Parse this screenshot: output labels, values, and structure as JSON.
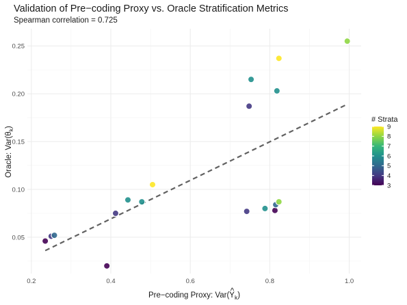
{
  "chart_data": {
    "type": "scatter",
    "title": "Validation of Pre−coding Proxy vs. Oracle Stratification Metrics",
    "subtitle": "Spearman correlation = 0.725",
    "xlabel": {
      "prefix": "Pre−coding Proxy: Var(",
      "main": "Y",
      "accent": "^",
      "subscript": "k",
      "suffix": ")"
    },
    "ylabel": {
      "prefix": "Oracle: Var(",
      "main": "θ",
      "accent": "^",
      "subscript": "k",
      "suffix": ")"
    },
    "xlim": [
      0.19,
      1.03
    ],
    "ylim": [
      0.012,
      0.268
    ],
    "x_ticks": [
      0.2,
      0.4,
      0.6,
      0.8,
      1.0
    ],
    "x_tick_labels": [
      "0.2",
      "0.4",
      "0.6",
      "0.8",
      "1.0"
    ],
    "y_ticks": [
      0.05,
      0.1,
      0.15,
      0.2,
      0.25
    ],
    "y_tick_labels": [
      "0.05",
      "0.10",
      "0.15",
      "0.20",
      "0.25"
    ],
    "grid": true,
    "legend": {
      "title": "# Strata",
      "position": "right",
      "range": [
        3,
        9
      ],
      "ticks": [
        3,
        4,
        5,
        6,
        7,
        8,
        9
      ],
      "tick_labels": [
        "3",
        "4",
        "5",
        "6",
        "7",
        "8",
        "9"
      ]
    },
    "trend_line": {
      "style": "dashed",
      "color": "#616161",
      "x": [
        0.235,
        0.995
      ],
      "y": [
        0.036,
        0.189
      ]
    },
    "points": [
      {
        "x": 0.235,
        "y": 0.046,
        "strata": 3
      },
      {
        "x": 0.25,
        "y": 0.051,
        "strata": 4
      },
      {
        "x": 0.258,
        "y": 0.052,
        "strata": 5
      },
      {
        "x": 0.39,
        "y": 0.02,
        "strata": 3
      },
      {
        "x": 0.412,
        "y": 0.075,
        "strata": 4
      },
      {
        "x": 0.443,
        "y": 0.089,
        "strata": 6
      },
      {
        "x": 0.478,
        "y": 0.087,
        "strata": 6
      },
      {
        "x": 0.505,
        "y": 0.105,
        "strata": 9
      },
      {
        "x": 0.742,
        "y": 0.077,
        "strata": 4
      },
      {
        "x": 0.748,
        "y": 0.187,
        "strata": 4
      },
      {
        "x": 0.753,
        "y": 0.215,
        "strata": 6
      },
      {
        "x": 0.788,
        "y": 0.08,
        "strata": 6
      },
      {
        "x": 0.813,
        "y": 0.078,
        "strata": 3
      },
      {
        "x": 0.815,
        "y": 0.084,
        "strata": 5
      },
      {
        "x": 0.818,
        "y": 0.203,
        "strata": 6
      },
      {
        "x": 0.823,
        "y": 0.087,
        "strata": 8
      },
      {
        "x": 0.823,
        "y": 0.237,
        "strata": 9
      },
      {
        "x": 0.995,
        "y": 0.255,
        "strata": 8
      }
    ],
    "colors": {
      "viridis": [
        "#440154",
        "#443983",
        "#31688e",
        "#21908d",
        "#35b779",
        "#8fd744",
        "#fde725"
      ],
      "trend": "#616161",
      "grid": "#ebebeb"
    }
  }
}
